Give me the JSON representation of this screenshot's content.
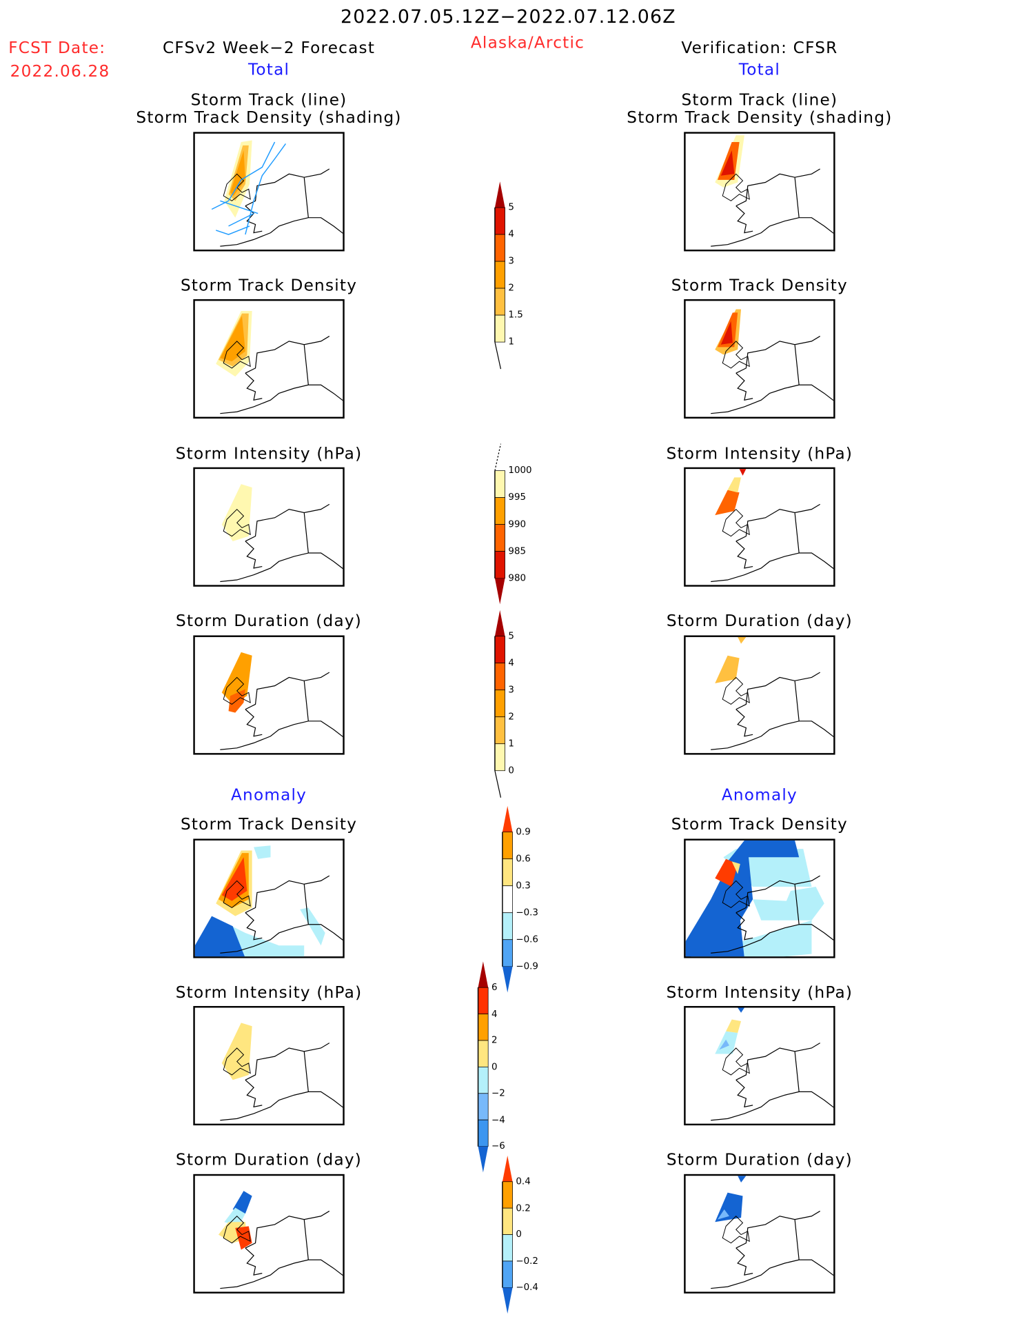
{
  "header": {
    "period": "2022.07.05.12Z−2022.07.12.06Z",
    "fcst_label": "FCST Date:",
    "fcst_date": "2022.06.28",
    "left_title": "CFSv2 Week−2 Forecast",
    "region": "Alaska/Arctic",
    "right_title": "Verification: CFSR",
    "total_label": "Total",
    "anomaly_label": "Anomaly"
  },
  "panel_titles": {
    "track_line": "Storm Track (line)",
    "track_density_shading": "Storm Track Density (shading)",
    "density": "Storm Track Density",
    "intensity": "Storm Intensity (hPa)",
    "duration": "Storm Duration (day)"
  },
  "chart_data": {
    "type": "heatmap",
    "colorbars": [
      {
        "name": "total-density",
        "labels": [
          "5",
          "4",
          "3",
          "2",
          "1.5",
          "1"
        ],
        "colors": [
          "#a50000",
          "#e01400",
          "#ff6400",
          "#ffa000",
          "#ffc040",
          "#fff8b0"
        ]
      },
      {
        "name": "total-intensity",
        "labels": [
          "1000",
          "995",
          "990",
          "985",
          "980"
        ],
        "colors": [
          "#fff8b0",
          "#ffa000",
          "#ff6400",
          "#e01400",
          "#a50000"
        ]
      },
      {
        "name": "total-duration",
        "labels": [
          "5",
          "4",
          "3",
          "2",
          "1",
          "0"
        ],
        "colors": [
          "#a50000",
          "#e01400",
          "#ff6400",
          "#ffa000",
          "#ffc040",
          "#fff8b0"
        ]
      },
      {
        "name": "anom-density",
        "labels": [
          "0.9",
          "0.6",
          "0.3",
          "−0.3",
          "−0.6",
          "−0.9"
        ],
        "colors": [
          "#ff3c00",
          "#ffa000",
          "#ffe680",
          "#ffffff",
          "#b4f0fa",
          "#50a5f5",
          "#1464d2"
        ]
      },
      {
        "name": "anom-intensity",
        "labels": [
          "6",
          "4",
          "2",
          "0",
          "−2",
          "−4",
          "−6"
        ],
        "colors": [
          "#a50000",
          "#ff3200",
          "#ffa000",
          "#ffe680",
          "#b4f0fa",
          "#78b9fa",
          "#3c96f0",
          "#1464d2"
        ]
      },
      {
        "name": "anom-duration",
        "labels": [
          "0.4",
          "0.2",
          "0",
          "−0.2",
          "−0.4"
        ],
        "colors": [
          "#ff3c00",
          "#ffa000",
          "#ffe680",
          "#b4f0fa",
          "#50a5f5",
          "#1464d2"
        ]
      }
    ]
  }
}
